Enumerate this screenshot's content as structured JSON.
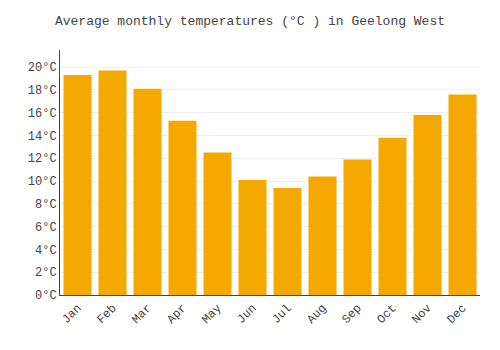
{
  "chart_data": {
    "type": "bar",
    "title": "Average monthly temperatures (°C ) in Geelong West",
    "categories": [
      "Jan",
      "Feb",
      "Mar",
      "Apr",
      "May",
      "Jun",
      "Jul",
      "Aug",
      "Sep",
      "Oct",
      "Nov",
      "Dec"
    ],
    "values": [
      19.3,
      19.7,
      18.1,
      15.3,
      12.5,
      10.1,
      9.4,
      10.4,
      11.9,
      13.8,
      15.8,
      17.6
    ],
    "color": "#F5A800",
    "ylim": [
      0,
      21.5
    ],
    "yticks": [
      {
        "value": 0,
        "label": "0°C"
      },
      {
        "value": 2,
        "label": "2°C"
      },
      {
        "value": 4,
        "label": "4°C"
      },
      {
        "value": 6,
        "label": "6°C"
      },
      {
        "value": 8,
        "label": "8°C"
      },
      {
        "value": 10,
        "label": "10°C"
      },
      {
        "value": 12,
        "label": "12°C"
      },
      {
        "value": 14,
        "label": "14°C"
      },
      {
        "value": 16,
        "label": "16°C"
      },
      {
        "value": 18,
        "label": "18°C"
      },
      {
        "value": 20,
        "label": "20°C"
      }
    ],
    "grid": true
  }
}
